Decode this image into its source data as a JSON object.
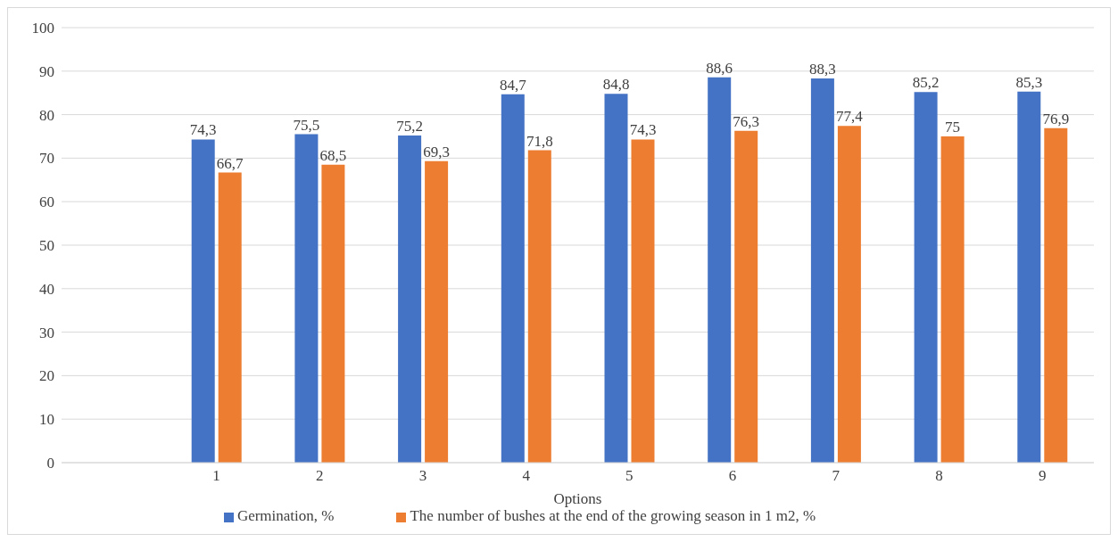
{
  "chart_data": {
    "type": "bar",
    "xlabel": "Options",
    "categories": [
      null,
      "1",
      "2",
      "3",
      "4",
      "5",
      "6",
      "7",
      "8",
      "9"
    ],
    "series": [
      {
        "name": "Germination, %",
        "color": "#4472c4",
        "values": [
          null,
          74.3,
          75.5,
          75.2,
          84.7,
          84.8,
          88.6,
          88.3,
          85.2,
          85.3
        ],
        "value_labels": [
          null,
          "74,3",
          "75,5",
          "75,2",
          "84,7",
          "84,8",
          "88,6",
          "88,3",
          "85,2",
          "85,3"
        ]
      },
      {
        "name": "The number of bushes at the end of the growing season in 1 m2, %",
        "color": "#ed7d31",
        "values": [
          null,
          66.7,
          68.5,
          69.3,
          71.8,
          74.3,
          76.3,
          77.4,
          75,
          76.9
        ],
        "value_labels": [
          null,
          "66,7",
          "68,5",
          "69,3",
          "71,8",
          "74,3",
          "76,3",
          "77,4",
          "75",
          "76,9"
        ]
      }
    ],
    "ylim": [
      0,
      100
    ],
    "yticks": [
      0,
      10,
      20,
      30,
      40,
      50,
      60,
      70,
      80,
      90,
      100
    ],
    "grid": "y",
    "legend": "bottom"
  }
}
